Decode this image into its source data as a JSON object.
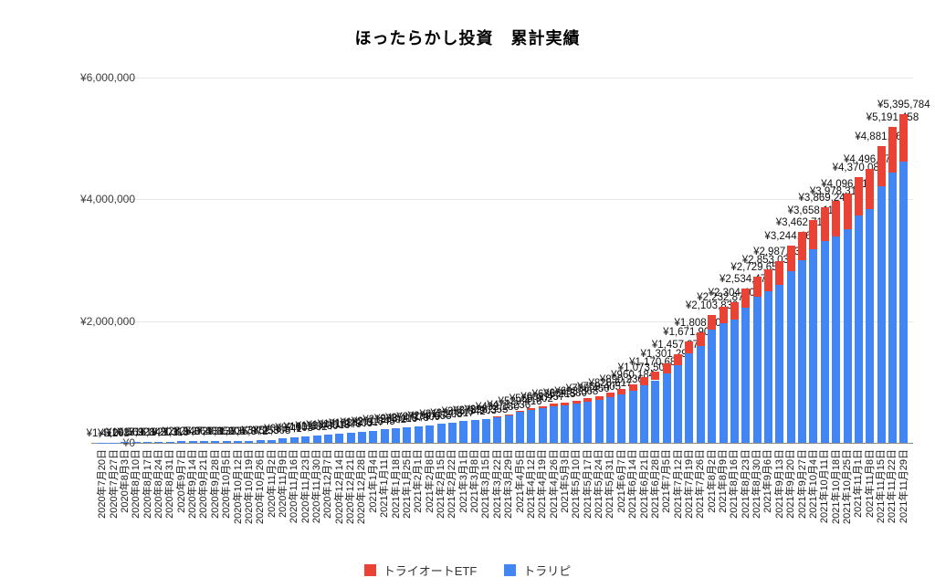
{
  "chart_data": {
    "type": "bar",
    "stacked": true,
    "title": "ほったらかし投資　累計実績",
    "legend_position": "bottom",
    "grid": true,
    "ylim": [
      0,
      6000000
    ],
    "y_ticks": [
      {
        "value": 0,
        "label": "¥0"
      },
      {
        "value": 2000000,
        "label": "¥2,000,000"
      },
      {
        "value": 4000000,
        "label": "¥4,000,000"
      },
      {
        "value": 6000000,
        "label": "¥6,000,000"
      }
    ],
    "categories": [
      "2020年7月20日",
      "2020年7月27日",
      "2020年8月3日",
      "2020年8月10日",
      "2020年8月17日",
      "2020年8月24日",
      "2020年8月31日",
      "2020年9月7日",
      "2020年9月14日",
      "2020年9月21日",
      "2020年9月28日",
      "2020年10月5日",
      "2020年10月12日",
      "2020年10月19日",
      "2020年10月26日",
      "2020年11月2日",
      "2020年11月9日",
      "2020年11月16日",
      "2020年11月23日",
      "2020年11月30日",
      "2020年12月7日",
      "2020年12月14日",
      "2020年12月21日",
      "2020年12月28日",
      "2021年1月4日",
      "2021年1月11日",
      "2021年1月18日",
      "2021年1月25日",
      "2021年2月1日",
      "2021年2月8日",
      "2021年2月15日",
      "2021年2月22日",
      "2021年3月1日",
      "2021年3月8日",
      "2021年3月15日",
      "2021年3月22日",
      "2021年3月29日",
      "2021年4月5日",
      "2021年4月12日",
      "2021年4月19日",
      "2021年4月26日",
      "2021年5月3日",
      "2021年5月10日",
      "2021年5月17日",
      "2021年5月24日",
      "2021年5月31日",
      "2021年6月7日",
      "2021年6月14日",
      "2021年6月21日",
      "2021年6月28日",
      "2021年7月5日",
      "2021年7月12日",
      "2021年7月19日",
      "2021年7月26日",
      "2021年8月2日",
      "2021年8月9日",
      "2021年8月16日",
      "2021年8月23日",
      "2021年8月30日",
      "2021年9月6日",
      "2021年9月13日",
      "2021年9月20日",
      "2021年9月27日",
      "2021年10月4日",
      "2021年10月11日",
      "2021年10月18日",
      "2021年10月25日",
      "2021年11月1日",
      "2021年11月8日",
      "2021年11月15日",
      "2021年11月22日",
      "2021年11月29日"
    ],
    "series": [
      {
        "name": "トラリピ",
        "color": "#4285f4",
        "stack_order": "bottom",
        "values": [
          1410,
          5208,
          10563,
          13921,
          16845,
          19203,
          21118,
          23540,
          25863,
          27431,
          29856,
          31204,
          33570,
          35872,
          38255,
          52308,
          68541,
          87903,
          103652,
          118430,
          134518,
          151276,
          168903,
          182617,
          201845,
          219502,
          238116,
          254873,
          271409,
          289655,
          311208,
          334517,
          356842,
          378903,
          396555,
          423970,
          455806,
          507101,
          539962,
          567181,
          596365,
          616015,
          638160,
          675038,
          698549,
          743478,
          794929,
          849702,
          945152,
          1027474,
          1140879,
          1279142,
          1475393,
          1593738,
          1858227,
          1964446,
          2018487,
          2224218,
          2393148,
          2490852,
          2597292,
          2815952,
          2997335,
          3177878,
          3312828,
          3388160,
          3504106,
          3739571,
          3841166,
          4210018,
          4433145,
          4627260
        ]
      },
      {
        "name": "トライオートETF",
        "color": "#ea4335",
        "stack_order": "top",
        "values": [
          0,
          0,
          0,
          0,
          0,
          0,
          0,
          0,
          0,
          0,
          0,
          0,
          0,
          0,
          0,
          0,
          0,
          0,
          0,
          0,
          0,
          0,
          0,
          0,
          0,
          0,
          0,
          0,
          0,
          0,
          0,
          0,
          0,
          0,
          0,
          8210,
          15430,
          22315,
          28940,
          34276,
          41850,
          48365,
          55208,
          63412,
          70856,
          82139,
          95307,
          110482,
          128356,
          143208,
          160415,
          178236,
          196508,
          214370,
          245612,
          268430,
          285917,
          310254,
          336508,
          362179,
          390246,
          428513,
          465380,
          480236,
          556412,
          590158,
          592304,
          630517,
          655209,
          671845,
          758313,
          768524
        ]
      }
    ],
    "totals": [
      1410,
      5208,
      10563,
      13921,
      16845,
      19203,
      21118,
      23540,
      25863,
      27431,
      29856,
      31204,
      33570,
      35872,
      38255,
      52308,
      68541,
      87903,
      103652,
      118430,
      134518,
      151276,
      168903,
      182617,
      201845,
      219502,
      238116,
      254873,
      271409,
      289655,
      311208,
      334517,
      356842,
      378903,
      396555,
      432180,
      471236,
      529416,
      568902,
      601457,
      638215,
      664380,
      693368,
      738450,
      769405,
      825617,
      890236,
      960184,
      1073508,
      1170682,
      1301294,
      1457378,
      1671901,
      1808108,
      2103839,
      2232876,
      2304404,
      2534472,
      2729656,
      2853031,
      2987538,
      3244465,
      3462715,
      3658114,
      3869240,
      3978318,
      4096410,
      4370088,
      4496375,
      4881863,
      5191458,
      5395784
    ],
    "total_label_prefix": "¥"
  },
  "legend": {
    "items": [
      {
        "label": "トライオートETF",
        "color": "#ea4335"
      },
      {
        "label": "トラリピ",
        "color": "#4285f4"
      }
    ]
  }
}
